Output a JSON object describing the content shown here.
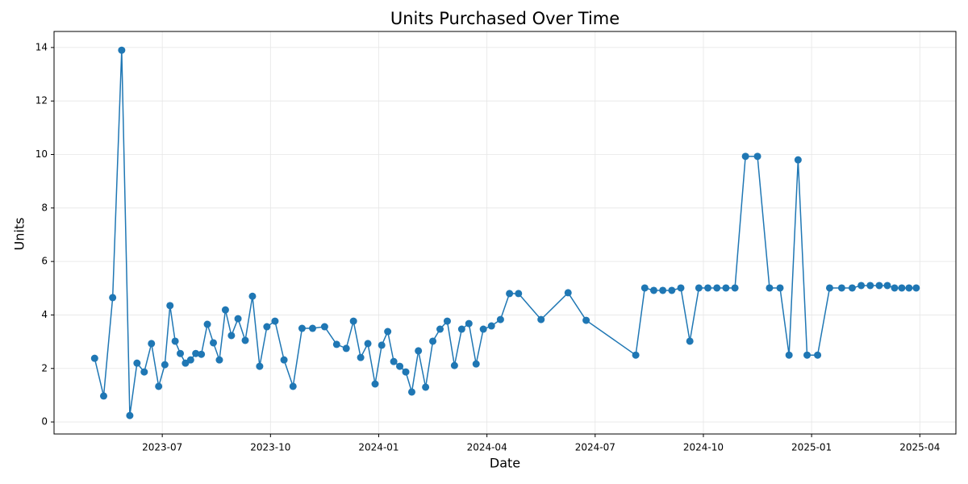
{
  "chart_data": {
    "type": "line",
    "title": "Units Purchased Over Time",
    "x_label": "Date",
    "y_label": "Units",
    "x": [
      "2023-05",
      "2023-05",
      "2023-05",
      "2023-05",
      "2023-06",
      "2023-06",
      "2023-06",
      "2023-06",
      "2023-06",
      "2023-07",
      "2023-07",
      "2023-07",
      "2023-07",
      "2023-07",
      "2023-07",
      "2023-07",
      "2023-08",
      "2023-08",
      "2023-08",
      "2023-08",
      "2023-08",
      "2023-08",
      "2023-09",
      "2023-09",
      "2023-09",
      "2023-09",
      "2023-09",
      "2023-10",
      "2023-10",
      "2023-10",
      "2023-10",
      "2023-11",
      "2023-11",
      "2023-11",
      "2023-12",
      "2023-12",
      "2023-12",
      "2023-12",
      "2023-12",
      "2024-01",
      "2024-01",
      "2024-01",
      "2024-01",
      "2024-01",
      "2024-01",
      "2024-02",
      "2024-02",
      "2024-02",
      "2024-02",
      "2024-02",
      "2024-03",
      "2024-03",
      "2024-03",
      "2024-03",
      "2024-03",
      "2024-04",
      "2024-04",
      "2024-04",
      "2024-04",
      "2024-05",
      "2024-06",
      "2024-06",
      "2024-08",
      "2024-08",
      "2024-08",
      "2024-08",
      "2024-09",
      "2024-09",
      "2024-09",
      "2024-09",
      "2024-10",
      "2024-10",
      "2024-10",
      "2024-10",
      "2024-11",
      "2024-11",
      "2024-11",
      "2024-12",
      "2024-12",
      "2024-12",
      "2024-12",
      "2025-01",
      "2025-01",
      "2025-01",
      "2025-02",
      "2025-02",
      "2025-02",
      "2025-02",
      "2025-03",
      "2025-03",
      "2025-03",
      "2025-03",
      "2025-03"
    ],
    "series": [
      {
        "name": "Units",
        "color": "#1f77b4",
        "values": [
          2.38,
          0.97,
          4.65,
          13.9,
          0.24,
          2.2,
          1.87,
          2.93,
          1.33,
          2.14,
          4.35,
          3.02,
          2.56,
          2.2,
          2.32,
          2.56,
          2.53,
          3.65,
          2.96,
          2.32,
          4.19,
          3.23,
          3.86,
          3.05,
          4.7,
          2.08,
          3.56,
          3.77,
          2.32,
          1.33,
          3.5,
          3.5,
          3.56,
          2.9,
          2.75,
          3.77,
          2.41,
          2.93,
          1.42,
          2.87,
          3.38,
          2.26,
          2.08,
          1.87,
          1.12,
          2.66,
          1.3,
          3.02,
          3.47,
          3.77,
          2.11,
          3.47,
          3.68,
          2.17,
          3.47,
          3.59,
          3.83,
          4.8,
          4.8,
          3.83,
          4.83,
          3.8,
          2.5,
          5.01,
          4.92,
          4.92,
          4.92,
          5.01,
          3.02,
          5.01,
          5.01,
          5.01,
          5.01,
          5.01,
          9.93,
          9.93,
          5.01,
          5.01,
          2.5,
          9.8,
          2.5,
          2.5,
          5.01,
          5.01,
          5.01,
          5.1,
          5.1,
          5.1,
          5.1,
          5.01,
          5.01,
          5.01,
          5.01
        ]
      }
    ],
    "xlim": [
      "2023-04",
      "2025-05"
    ],
    "xticks": [
      "2023-07",
      "2023-10",
      "2024-01",
      "2024-04",
      "2024-07",
      "2024-10",
      "2025-01",
      "2025-04"
    ],
    "ylim": [
      -0.45,
      14.6
    ],
    "yticks": [
      0,
      2,
      4,
      6,
      8,
      10,
      12,
      14
    ],
    "grid": true
  }
}
